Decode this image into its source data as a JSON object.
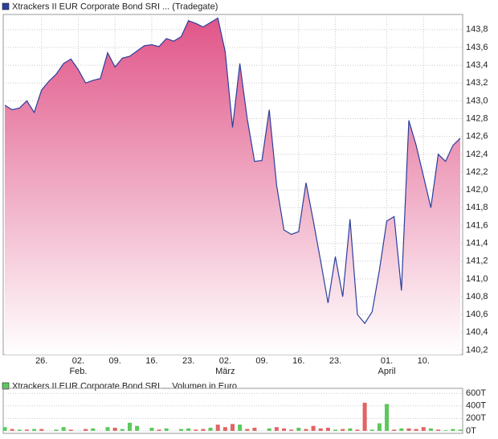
{
  "chart_data": [
    {
      "type": "area",
      "categories": [
        null,
        null,
        null,
        null,
        null,
        "26.",
        null,
        null,
        null,
        null,
        "02.",
        null,
        null,
        null,
        null,
        "09.",
        null,
        null,
        null,
        null,
        "16.",
        null,
        null,
        null,
        null,
        "23.",
        null,
        null,
        null,
        null,
        "02.",
        null,
        null,
        null,
        null,
        "09.",
        null,
        null,
        null,
        null,
        "16.",
        null,
        null,
        null,
        null,
        "23.",
        null,
        null,
        null,
        null,
        null,
        null,
        "01.",
        null,
        null,
        null,
        null,
        "10.",
        null,
        null,
        null,
        null,
        null
      ],
      "month_labels": [
        "Feb.",
        "März",
        "April"
      ],
      "series": [
        {
          "name": "Xtrackers II EUR Corporate Bond SRI ... (Tradegate)",
          "color": "#2a3f9e",
          "fill_top": "#e05588",
          "values": [
            142.95,
            142.9,
            142.92,
            143.0,
            142.87,
            143.12,
            143.22,
            143.3,
            143.42,
            143.47,
            143.35,
            143.2,
            143.23,
            143.25,
            143.54,
            143.38,
            143.48,
            143.5,
            143.56,
            143.62,
            143.63,
            143.61,
            143.7,
            143.67,
            143.72,
            143.9,
            143.87,
            143.83,
            143.88,
            143.93,
            143.55,
            142.7,
            143.42,
            142.8,
            142.32,
            142.33,
            142.9,
            142.05,
            141.55,
            141.5,
            141.53,
            142.08,
            141.65,
            141.2,
            140.73,
            141.25,
            140.8,
            141.67,
            140.6,
            140.5,
            140.63,
            141.1,
            141.65,
            141.7,
            140.87,
            142.78,
            142.5,
            142.15,
            141.8,
            142.4,
            142.32,
            142.5,
            142.58
          ]
        }
      ],
      "ylim": [
        140.15,
        143.97
      ],
      "yticks": [
        {
          "value": 140.2,
          "label": "140,2"
        },
        {
          "value": 140.4,
          "label": "140,4"
        },
        {
          "value": 140.6,
          "label": "140,6"
        },
        {
          "value": 140.8,
          "label": "140,8"
        },
        {
          "value": 141.0,
          "label": "141,0"
        },
        {
          "value": 141.2,
          "label": "141,2"
        },
        {
          "value": 141.4,
          "label": "141,4"
        },
        {
          "value": 141.6,
          "label": "141,6"
        },
        {
          "value": 141.8,
          "label": "141,8"
        },
        {
          "value": 142.0,
          "label": "142,0"
        },
        {
          "value": 142.2,
          "label": "142,2"
        },
        {
          "value": 142.4,
          "label": "142,4"
        },
        {
          "value": 142.6,
          "label": "142,6"
        },
        {
          "value": 142.8,
          "label": "142,8"
        },
        {
          "value": 143.0,
          "label": "143,0"
        },
        {
          "value": 143.2,
          "label": "143,2"
        },
        {
          "value": 143.4,
          "label": "143,4"
        },
        {
          "value": 143.6,
          "label": "143,6"
        },
        {
          "value": 143.8,
          "label": "143,8"
        }
      ],
      "grid": true
    },
    {
      "type": "bar",
      "series": [
        {
          "name": "Xtrackers II EUR Corporate Bond SRI ... Volumen in Euro",
          "color": "#5cc85c",
          "values": [
            60,
            30,
            20,
            20,
            30,
            30,
            0,
            20,
            60,
            20,
            0,
            30,
            40,
            0,
            60,
            50,
            30,
            130,
            80,
            0,
            50,
            20,
            40,
            0,
            30,
            40,
            20,
            30,
            50,
            100,
            60,
            110,
            100,
            30,
            50,
            0,
            40,
            60,
            40,
            20,
            50,
            30,
            80,
            40,
            50,
            20,
            30,
            40,
            20,
            450,
            20,
            120,
            430,
            20,
            40,
            40,
            30,
            60,
            40,
            20,
            10,
            30,
            20
          ],
          "colors": [
            "#5cc85c",
            "#e06464",
            "#5cc85c",
            "#e06464",
            "#5cc85c",
            "#e06464",
            "#5cc85c",
            "#5cc85c",
            "#5cc85c",
            "#e06464",
            "#5cc85c",
            "#e06464",
            "#5cc85c",
            "#5cc85c",
            "#5cc85c",
            "#e06464",
            "#5cc85c",
            "#5cc85c",
            "#5cc85c",
            "#5cc85c",
            "#5cc85c",
            "#e06464",
            "#5cc85c",
            "#5cc85c",
            "#5cc85c",
            "#5cc85c",
            "#e06464",
            "#e06464",
            "#5cc85c",
            "#e06464",
            "#e06464",
            "#e06464",
            "#5cc85c",
            "#e06464",
            "#e06464",
            "#5cc85c",
            "#5cc85c",
            "#e06464",
            "#e06464",
            "#e06464",
            "#5cc85c",
            "#e06464",
            "#e06464",
            "#e06464",
            "#e06464",
            "#5cc85c",
            "#e06464",
            "#5cc85c",
            "#e06464",
            "#e06464",
            "#5cc85c",
            "#5cc85c",
            "#5cc85c",
            "#e06464",
            "#5cc85c",
            "#e06464",
            "#e06464",
            "#e06464",
            "#5cc85c",
            "#e06464",
            "#5cc85c",
            "#5cc85c",
            "#5cc85c"
          ]
        }
      ],
      "ylim": [
        -40,
        680
      ],
      "yticks": [
        {
          "value": 0,
          "label": "0T"
        },
        {
          "value": 200,
          "label": "200T"
        },
        {
          "value": 400,
          "label": "400T"
        },
        {
          "value": 600,
          "label": "600T"
        }
      ],
      "grid": true
    }
  ]
}
